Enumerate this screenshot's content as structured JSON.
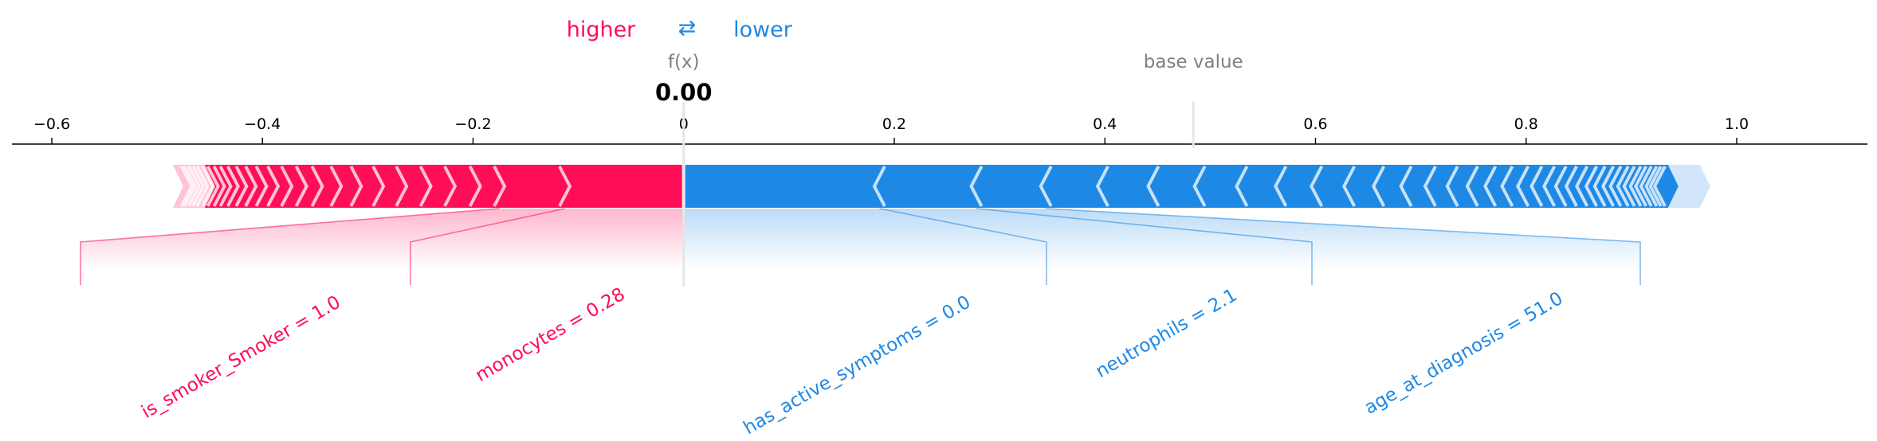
{
  "legend": {
    "higher": "higher",
    "arrows": "⇄",
    "lower": "lower"
  },
  "fx_label": "f(x)",
  "fx_value_text": "0.00",
  "base_value_label": "base value",
  "colors": {
    "positive": "#ff0d57",
    "negative": "#1e88e5",
    "positive_light": "#ffc3d5",
    "negative_light": "#d1e6fa",
    "muted_text": "#808080"
  },
  "chart_data": {
    "type": "force",
    "title": "",
    "xlabel": "",
    "ylabel": "",
    "xlim": [
      -0.64,
      1.12
    ],
    "ticks": [
      -0.6,
      -0.4,
      -0.2,
      0,
      0.2,
      0.4,
      0.6,
      0.8,
      1.0
    ],
    "tick_labels": [
      "−0.6",
      "−0.4",
      "−0.2",
      "0",
      "0.2",
      "0.4",
      "0.6",
      "0.8",
      "1.0"
    ],
    "fx": 0.0,
    "base_value": 0.484,
    "positive_bar": {
      "start": -0.485,
      "end": 0.0
    },
    "negative_bar": {
      "start": 0.0,
      "end": 0.965
    },
    "positive_boundaries": [
      -0.113,
      -0.175,
      -0.198,
      -0.222,
      -0.245,
      -0.268,
      -0.29,
      -0.311,
      -0.33,
      -0.348,
      -0.363,
      -0.377,
      -0.39,
      -0.401,
      -0.411,
      -0.42,
      -0.428,
      -0.435,
      -0.441,
      -0.447,
      -0.452,
      -0.457,
      -0.461,
      -0.465,
      -0.469,
      -0.472
    ],
    "negative_boundaries": [
      0.186,
      0.278,
      0.344,
      0.398,
      0.446,
      0.49,
      0.53,
      0.567,
      0.601,
      0.632,
      0.66,
      0.686,
      0.709,
      0.73,
      0.749,
      0.766,
      0.782,
      0.797,
      0.81,
      0.822,
      0.833,
      0.843,
      0.853,
      0.862,
      0.87,
      0.878,
      0.885,
      0.892,
      0.898,
      0.904,
      0.909,
      0.914,
      0.919,
      0.923,
      0.927
    ],
    "features": [
      {
        "label": "is_smoker_Smoker = 1.0",
        "start": -0.175,
        "end": -0.113,
        "effect": "positive"
      },
      {
        "label": "monocytes = 0.28",
        "start": -0.113,
        "end": 0.0,
        "effect": "positive"
      },
      {
        "label": "has_active_symptoms = 0.0",
        "start": 0.0,
        "end": 0.186,
        "effect": "negative"
      },
      {
        "label": "neutrophils = 2.1",
        "start": 0.186,
        "end": 0.278,
        "effect": "negative"
      },
      {
        "label": "age_at_diagnosis = 51.0",
        "start": 0.278,
        "end": 0.344,
        "effect": "negative"
      }
    ]
  }
}
